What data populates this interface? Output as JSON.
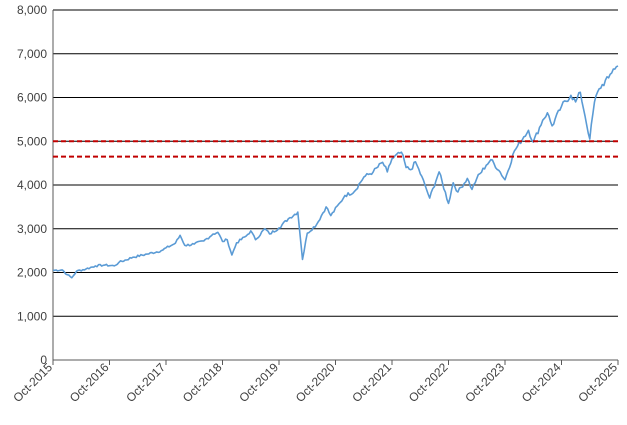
{
  "chart_data": {
    "type": "line",
    "title": "",
    "xlabel": "",
    "ylabel": "",
    "ylim": [
      0,
      8000
    ],
    "y_ticks": [
      "0",
      "1,000",
      "2,000",
      "3,000",
      "4,000",
      "5,000",
      "6,000",
      "7,000",
      "8,000"
    ],
    "x_ticks": [
      "Oct-2015",
      "Oct-2016",
      "Oct-2017",
      "Oct-2018",
      "Oct-2019",
      "Oct-2020",
      "Oct-2021",
      "Oct-2022",
      "Oct-2023",
      "Oct-2024",
      "Oct-2025"
    ],
    "grid": "horizontal",
    "series": [
      {
        "color": "#5b9bd5",
        "points": [
          [
            "2015-10",
            2050
          ],
          [
            "2015-12",
            2060
          ],
          [
            "2016-01",
            1950
          ],
          [
            "2016-02",
            1880
          ],
          [
            "2016-03",
            2030
          ],
          [
            "2016-05",
            2080
          ],
          [
            "2016-07",
            2150
          ],
          [
            "2016-09",
            2170
          ],
          [
            "2016-11",
            2150
          ],
          [
            "2016-12",
            2230
          ],
          [
            "2017-03",
            2350
          ],
          [
            "2017-06",
            2420
          ],
          [
            "2017-09",
            2500
          ],
          [
            "2017-12",
            2670
          ],
          [
            "2018-01",
            2850
          ],
          [
            "2018-02",
            2620
          ],
          [
            "2018-04",
            2650
          ],
          [
            "2018-06",
            2720
          ],
          [
            "2018-08",
            2880
          ],
          [
            "2018-09",
            2920
          ],
          [
            "2018-10",
            2710
          ],
          [
            "2018-11",
            2750
          ],
          [
            "2018-12",
            2400
          ],
          [
            "2019-01",
            2680
          ],
          [
            "2019-03",
            2830
          ],
          [
            "2019-04",
            2950
          ],
          [
            "2019-05",
            2750
          ],
          [
            "2019-07",
            3000
          ],
          [
            "2019-08",
            2880
          ],
          [
            "2019-10",
            3020
          ],
          [
            "2019-12",
            3230
          ],
          [
            "2020-02",
            3380
          ],
          [
            "2020-03",
            2300
          ],
          [
            "2020-04",
            2900
          ],
          [
            "2020-06",
            3100
          ],
          [
            "2020-08",
            3500
          ],
          [
            "2020-09",
            3300
          ],
          [
            "2020-11",
            3600
          ],
          [
            "2020-12",
            3760
          ],
          [
            "2021-02",
            3850
          ],
          [
            "2021-04",
            4180
          ],
          [
            "2021-06",
            4300
          ],
          [
            "2021-08",
            4520
          ],
          [
            "2021-09",
            4300
          ],
          [
            "2021-10",
            4600
          ],
          [
            "2021-12",
            4750
          ],
          [
            "2022-01",
            4400
          ],
          [
            "2022-02",
            4350
          ],
          [
            "2022-03",
            4530
          ],
          [
            "2022-05",
            4000
          ],
          [
            "2022-06",
            3700
          ],
          [
            "2022-08",
            4300
          ],
          [
            "2022-10",
            3580
          ],
          [
            "2022-11",
            4050
          ],
          [
            "2022-12",
            3840
          ],
          [
            "2023-02",
            4150
          ],
          [
            "2023-03",
            3900
          ],
          [
            "2023-04",
            4150
          ],
          [
            "2023-06",
            4450
          ],
          [
            "2023-07",
            4580
          ],
          [
            "2023-09",
            4290
          ],
          [
            "2023-10",
            4120
          ],
          [
            "2023-12",
            4780
          ],
          [
            "2024-02",
            5100
          ],
          [
            "2024-03",
            5250
          ],
          [
            "2024-04",
            4980
          ],
          [
            "2024-06",
            5480
          ],
          [
            "2024-07",
            5650
          ],
          [
            "2024-08",
            5350
          ],
          [
            "2024-10",
            5800
          ],
          [
            "2024-12",
            6050
          ],
          [
            "2025-01",
            5900
          ],
          [
            "2025-02",
            6120
          ],
          [
            "2025-03",
            5580
          ],
          [
            "2025-04",
            5050
          ],
          [
            "2025-05",
            5900
          ],
          [
            "2025-06",
            6200
          ],
          [
            "2025-08",
            6450
          ],
          [
            "2025-09",
            6650
          ],
          [
            "2025-10",
            6720
          ]
        ]
      }
    ],
    "reference_lines": [
      {
        "y": 5000,
        "color": "#c00000",
        "style": "dashed"
      },
      {
        "y": 4650,
        "color": "#c00000",
        "style": "dashed"
      }
    ],
    "colors": {
      "axis": "#595959",
      "grid": "#000000",
      "tick_label": "#404040"
    }
  }
}
